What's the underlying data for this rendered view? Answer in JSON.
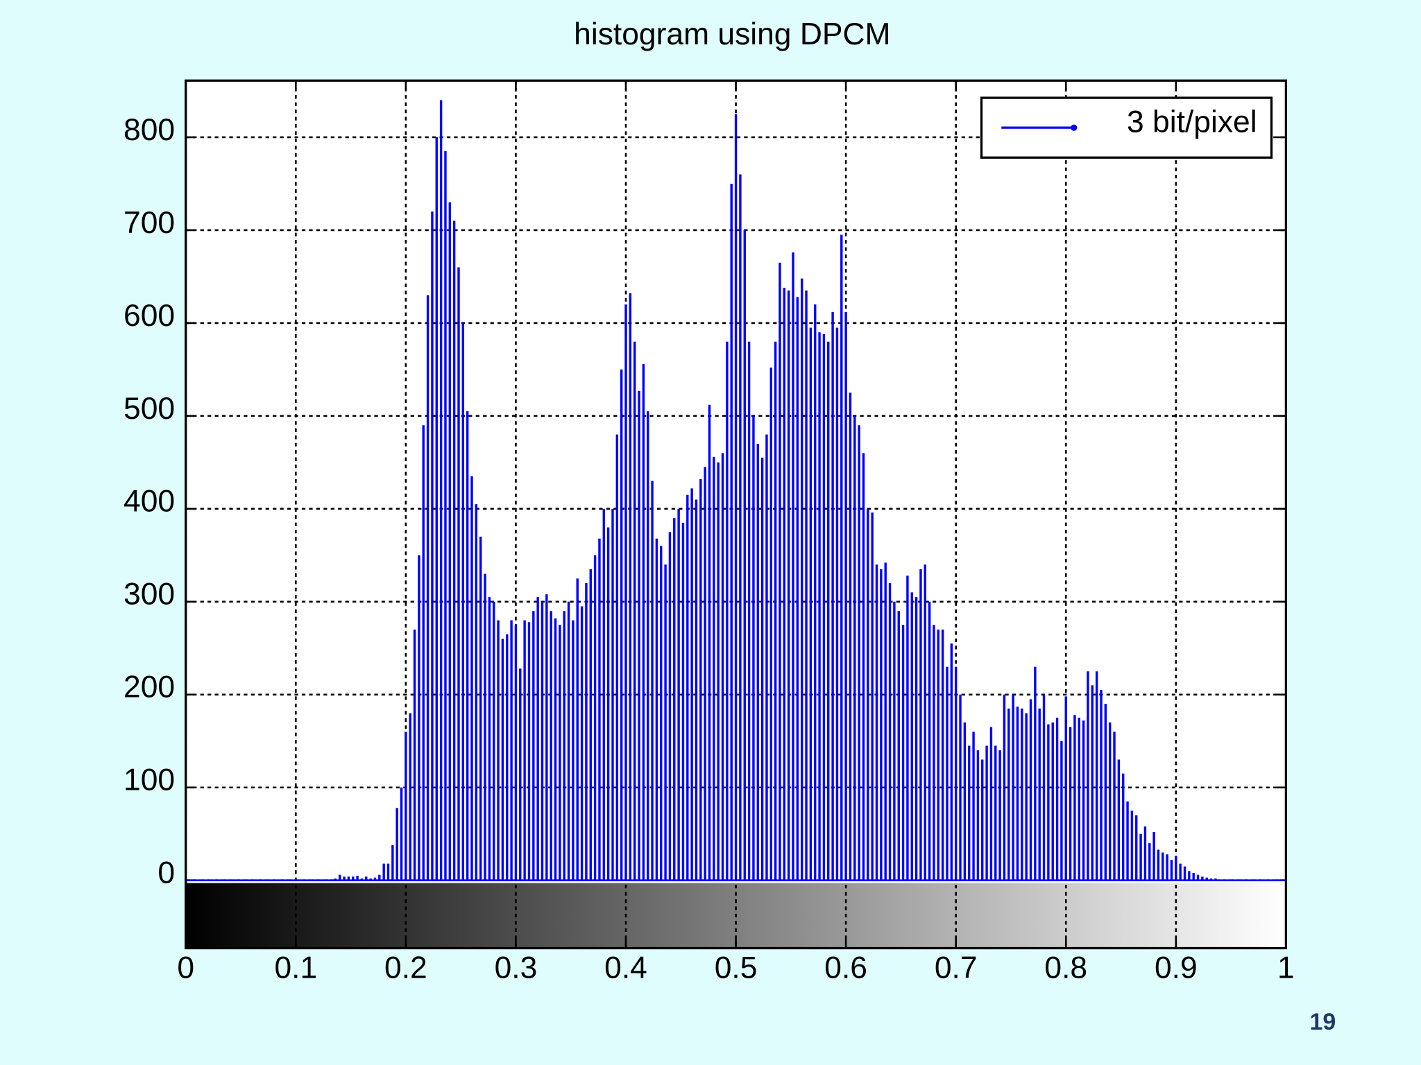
{
  "chart_data": {
    "type": "stem",
    "title": "histogram using DPCM",
    "x": [
      0,
      0.004,
      0.008,
      0.012,
      0.016,
      0.02,
      0.024,
      0.028,
      0.032,
      0.036,
      0.04,
      0.044,
      0.048,
      0.052,
      0.056,
      0.06,
      0.064,
      0.068,
      0.072,
      0.076,
      0.08,
      0.084,
      0.088,
      0.092,
      0.096,
      0.1,
      0.104,
      0.108,
      0.112,
      0.116,
      0.12,
      0.124,
      0.128,
      0.132,
      0.136,
      0.14,
      0.144,
      0.148,
      0.152,
      0.156,
      0.16,
      0.164,
      0.168,
      0.172,
      0.176,
      0.18,
      0.184,
      0.188,
      0.192,
      0.196,
      0.2,
      0.204,
      0.208,
      0.212,
      0.216,
      0.22,
      0.224,
      0.228,
      0.232,
      0.236,
      0.24,
      0.244,
      0.248,
      0.252,
      0.256,
      0.26,
      0.264,
      0.268,
      0.272,
      0.276,
      0.28,
      0.284,
      0.288,
      0.292,
      0.296,
      0.3,
      0.304,
      0.308,
      0.312,
      0.316,
      0.32,
      0.324,
      0.328,
      0.332,
      0.336,
      0.34,
      0.344,
      0.348,
      0.352,
      0.356,
      0.36,
      0.364,
      0.368,
      0.372,
      0.376,
      0.38,
      0.384,
      0.388,
      0.392,
      0.396,
      0.4,
      0.404,
      0.408,
      0.412,
      0.416,
      0.42,
      0.424,
      0.428,
      0.432,
      0.436,
      0.44,
      0.444,
      0.448,
      0.452,
      0.456,
      0.46,
      0.464,
      0.468,
      0.472,
      0.476,
      0.48,
      0.484,
      0.488,
      0.492,
      0.496,
      0.5,
      0.504,
      0.508,
      0.512,
      0.516,
      0.52,
      0.524,
      0.528,
      0.532,
      0.536,
      0.54,
      0.544,
      0.548,
      0.552,
      0.556,
      0.56,
      0.564,
      0.568,
      0.572,
      0.576,
      0.58,
      0.584,
      0.588,
      0.592,
      0.596,
      0.6,
      0.604,
      0.608,
      0.612,
      0.616,
      0.62,
      0.624,
      0.628,
      0.632,
      0.636,
      0.64,
      0.644,
      0.648,
      0.652,
      0.656,
      0.66,
      0.664,
      0.668,
      0.672,
      0.676,
      0.68,
      0.684,
      0.688,
      0.692,
      0.696,
      0.7,
      0.704,
      0.708,
      0.712,
      0.716,
      0.72,
      0.724,
      0.728,
      0.732,
      0.736,
      0.74,
      0.744,
      0.748,
      0.752,
      0.756,
      0.76,
      0.764,
      0.768,
      0.772,
      0.776,
      0.78,
      0.784,
      0.788,
      0.792,
      0.796,
      0.8,
      0.804,
      0.808,
      0.812,
      0.816,
      0.82,
      0.824,
      0.828,
      0.832,
      0.836,
      0.84,
      0.844,
      0.848,
      0.852,
      0.856,
      0.86,
      0.864,
      0.868,
      0.872,
      0.876,
      0.88,
      0.884,
      0.888,
      0.892,
      0.896,
      0.9,
      0.904,
      0.908,
      0.912,
      0.916,
      0.92,
      0.924,
      0.928,
      0.932,
      0.936,
      0.94,
      0.944,
      0.948,
      0.952,
      0.956,
      0.96,
      0.964,
      0.968,
      0.972,
      0.976,
      0.98,
      0.984,
      0.988,
      0.992,
      0.996,
      1
    ],
    "series": [
      {
        "name": "3 bit/pixel",
        "color": "#0000ff",
        "values": [
          0,
          1,
          1,
          1,
          1,
          1,
          1,
          1,
          1,
          1,
          1,
          1,
          1,
          1,
          1,
          1,
          1,
          1,
          1,
          1,
          1,
          1,
          1,
          1,
          1,
          1,
          1,
          1,
          1,
          1,
          1,
          1,
          1,
          1,
          2,
          6,
          4,
          4,
          4,
          5,
          2,
          4,
          2,
          3,
          6,
          18,
          18,
          38,
          78,
          100,
          160,
          180,
          270,
          350,
          490,
          630,
          720,
          800,
          840,
          785,
          730,
          710,
          660,
          600,
          505,
          435,
          405,
          370,
          330,
          305,
          300,
          280,
          260,
          265,
          280,
          275,
          228,
          280,
          278,
          290,
          305,
          300,
          308,
          290,
          282,
          275,
          290,
          300,
          280,
          325,
          295,
          320,
          335,
          350,
          368,
          400,
          380,
          400,
          480,
          550,
          620,
          632,
          580,
          527,
          556,
          505,
          430,
          368,
          360,
          340,
          375,
          390,
          400,
          385,
          415,
          422,
          410,
          432,
          445,
          512,
          456,
          450,
          460,
          580,
          750,
          825,
          760,
          700,
          580,
          500,
          470,
          455,
          480,
          552,
          580,
          665,
          638,
          635,
          676,
          628,
          648,
          635,
          595,
          620,
          590,
          588,
          580,
          612,
          595,
          695,
          612,
          525,
          500,
          490,
          460,
          400,
          396,
          340,
          335,
          342,
          320,
          300,
          290,
          275,
          328,
          310,
          305,
          335,
          340,
          300,
          275,
          270,
          270,
          230,
          255,
          230,
          200,
          170,
          145,
          160,
          140,
          130,
          145,
          165,
          145,
          140,
          200,
          185,
          200,
          187,
          185,
          180,
          195,
          230,
          185,
          200,
          168,
          170,
          175,
          150,
          198,
          165,
          178,
          175,
          172,
          225,
          210,
          225,
          205,
          190,
          170,
          160,
          130,
          115,
          85,
          75,
          70,
          50,
          58,
          40,
          52,
          33,
          30,
          28,
          22,
          26,
          18,
          15,
          10,
          8,
          6,
          4,
          3,
          2,
          2,
          1,
          1,
          1,
          1,
          1,
          1,
          1,
          1,
          1,
          1,
          1,
          1,
          1,
          1,
          1,
          1
        ]
      }
    ],
    "xlim": [
      0,
      1
    ],
    "xticks": [
      0,
      0.1,
      0.2,
      0.3,
      0.4,
      0.5,
      0.6,
      0.7,
      0.8,
      0.9,
      1
    ],
    "ylim": [
      -73,
      861
    ],
    "yticks": [
      0,
      100,
      200,
      300,
      400,
      500,
      600,
      700,
      800
    ],
    "grid": true,
    "legend": "upper right"
  },
  "slide_number": "19"
}
